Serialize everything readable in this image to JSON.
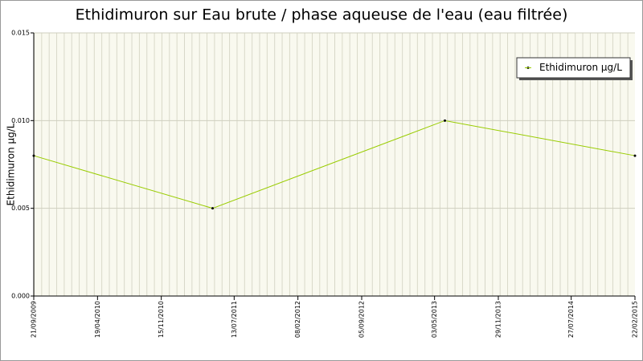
{
  "chart_data": {
    "type": "line",
    "title": "Ethidimuron sur Eau brute / phase aqueuse de l'eau (eau filtrée)",
    "y_label": "Ethidimuron µg/L",
    "x": [
      "21/09/2009",
      "03/05/2011",
      "06/06/2013",
      "22/02/2015"
    ],
    "series": [
      {
        "name": "Ethidimuron µg/L",
        "color": "#99cc00",
        "values": [
          0.008,
          0.005,
          0.01,
          0.008
        ]
      }
    ],
    "xlim": [
      "21/09/2009",
      "22/02/2015"
    ],
    "xticks": [
      "21/09/2009",
      "19/04/2010",
      "15/11/2010",
      "13/07/2011",
      "08/02/2012",
      "05/09/2012",
      "03/05/2013",
      "29/11/2013",
      "27/07/2014",
      "22/02/2015"
    ],
    "ylim": [
      0,
      0.015
    ],
    "yticks": [
      {
        "value": 0,
        "label": "0.000"
      },
      {
        "value": 0.005,
        "label": "0.005"
      },
      {
        "value": 0.01,
        "label": "0.010"
      },
      {
        "value": 0.015,
        "label": "0.015"
      }
    ],
    "grid": true,
    "legend": "top-right"
  }
}
